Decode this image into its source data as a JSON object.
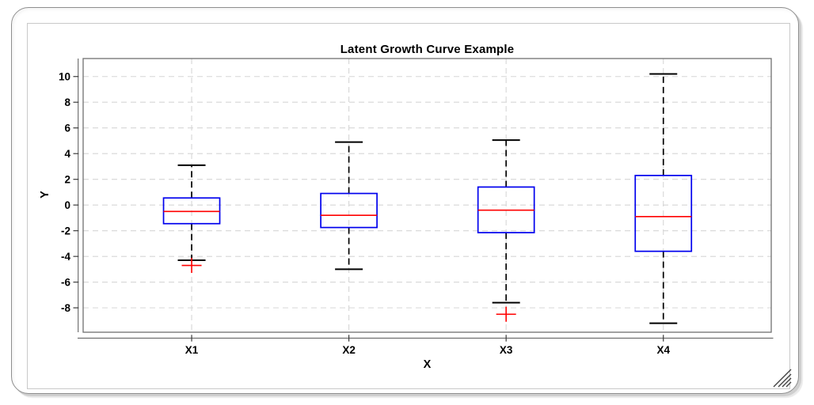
{
  "window": {
    "background": "#ffffff",
    "border_color": "#8f8f8f",
    "icons": {
      "resize_grip": "resize-grip-icon"
    }
  },
  "chart_data": {
    "type": "boxplot",
    "title": "Latent Growth Curve Example",
    "xlabel": "X",
    "ylabel": "Y",
    "categories": [
      "X1",
      "X2",
      "X3",
      "X4"
    ],
    "yticks": [
      10,
      8,
      6,
      4,
      2,
      0,
      -2,
      -4,
      -6,
      -8
    ],
    "ylim": [
      -9.9,
      11.4
    ],
    "grid": true,
    "legend": "none",
    "series": [
      {
        "category": "X1",
        "whisker_low": -4.3,
        "q1": -1.45,
        "median": -0.5,
        "q3": 0.55,
        "whisker_high": 3.1,
        "outliers": [
          -4.7
        ]
      },
      {
        "category": "X2",
        "whisker_low": -5.0,
        "q1": -1.75,
        "median": -0.8,
        "q3": 0.9,
        "whisker_high": 4.9,
        "outliers": []
      },
      {
        "category": "X3",
        "whisker_low": -7.6,
        "q1": -2.15,
        "median": -0.4,
        "q3": 1.4,
        "whisker_high": 5.05,
        "outliers": [
          -8.5
        ]
      },
      {
        "category": "X4",
        "whisker_low": -9.2,
        "q1": -3.6,
        "median": -0.9,
        "q3": 2.3,
        "whisker_high": 10.2,
        "outliers": []
      }
    ],
    "colors": {
      "box": "#0000ee",
      "median": "#ff0000",
      "whisker": "#000000",
      "cap": "#000000",
      "outlier": "#ff0000",
      "grid": "#d6d6d6",
      "axis": "#707070",
      "tick": "#3a3a3a",
      "text": "#000000"
    }
  }
}
